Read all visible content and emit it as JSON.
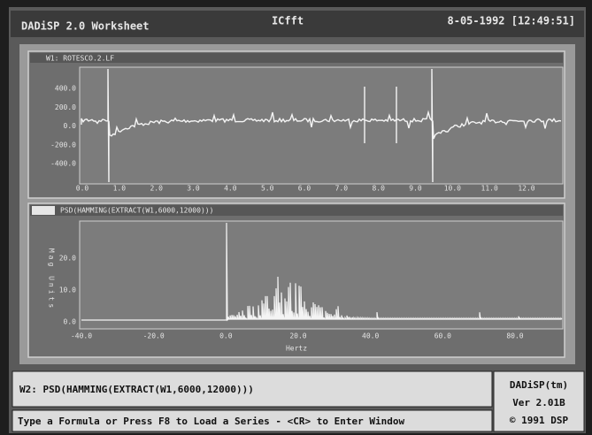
{
  "title_bar": {
    "app": "DADiSP 2.0 Worksheet",
    "module": "ICfft",
    "datetime": "8-05-1992 [12:49:51]"
  },
  "windows": [
    {
      "label": "W1: ROTESCO.2.LF",
      "yticks": [
        "400.0",
        "200.0",
        "0.0",
        "-200.0",
        "-400.0"
      ],
      "xticks": [
        "0.0",
        "1.0",
        "2.0",
        "3.0",
        "4.0",
        "5.0",
        "6.0",
        "7.0",
        "8.0",
        "9.0",
        "10.0",
        "11.0",
        "12.0"
      ]
    },
    {
      "label": "PSD(HAMMING(EXTRACT(W1,6000,12000)))",
      "ylabel": "Mag Units",
      "yticks": [
        "20.0",
        "10.0",
        "0.0"
      ],
      "xticks": [
        "-40.0",
        "-20.0",
        "0.0",
        "20.0",
        "40.0",
        "60.0",
        "80.0"
      ],
      "xlabel": "Hertz"
    }
  ],
  "command_line": "W2: PSD(HAMMING(EXTRACT(W1,6000,12000)))",
  "status_line": "Type a Formula or Press F8 to Load a Series - <CR> to Enter Window",
  "version_box": [
    "DADiSP(tm)",
    "Ver 2.01B",
    "© 1991 DSP"
  ]
}
